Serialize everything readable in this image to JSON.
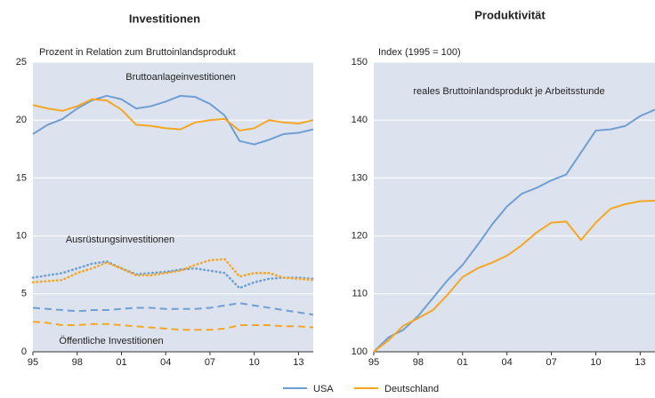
{
  "chart_data": [
    {
      "type": "line",
      "title": "Investitionen",
      "subtitle": "Prozent in Relation zum Bruttoinlandsprodukt",
      "annotations": [
        "Bruttoanlageinvestitionen",
        "Ausrüstungsinvestitionen",
        "Öffentliche Investitionen"
      ],
      "x": [
        1995,
        1996,
        1997,
        1998,
        1999,
        2000,
        2001,
        2002,
        2003,
        2004,
        2005,
        2006,
        2007,
        2008,
        2009,
        2010,
        2011,
        2012,
        2013,
        2014
      ],
      "xlim": [
        1995,
        2014
      ],
      "xticks": [
        {
          "value": 1995,
          "label": "95"
        },
        {
          "value": 1998,
          "label": "98"
        },
        {
          "value": 2001,
          "label": "01"
        },
        {
          "value": 2004,
          "label": "04"
        },
        {
          "value": 2007,
          "label": "07"
        },
        {
          "value": 2010,
          "label": "10"
        },
        {
          "value": 2013,
          "label": "13"
        }
      ],
      "ylim": [
        0,
        25
      ],
      "yticks": [
        0,
        5,
        10,
        15,
        20,
        25
      ],
      "series": [
        {
          "color": "#6f9fd2",
          "style": "solid",
          "values": [
            18.8,
            19.6,
            20.1,
            21.0,
            21.7,
            22.1,
            21.8,
            21.0,
            21.2,
            21.6,
            22.1,
            22.0,
            21.4,
            20.4,
            18.2,
            17.9,
            18.3,
            18.8,
            18.9,
            19.2
          ]
        },
        {
          "color": "#f5a623",
          "style": "solid",
          "values": [
            21.3,
            21.0,
            20.8,
            21.2,
            21.8,
            21.7,
            20.9,
            19.6,
            19.5,
            19.3,
            19.2,
            19.8,
            20.0,
            20.1,
            19.1,
            19.3,
            20.0,
            19.8,
            19.7,
            20.0
          ]
        },
        {
          "color": "#6f9fd2",
          "style": "dotted",
          "values": [
            6.4,
            6.6,
            6.8,
            7.2,
            7.6,
            7.8,
            7.2,
            6.7,
            6.8,
            6.9,
            7.1,
            7.2,
            7.0,
            6.8,
            5.5,
            6.0,
            6.3,
            6.4,
            6.4,
            6.3
          ]
        },
        {
          "color": "#f5a623",
          "style": "dotted",
          "values": [
            6.0,
            6.1,
            6.2,
            6.8,
            7.2,
            7.7,
            7.2,
            6.6,
            6.6,
            6.8,
            7.0,
            7.5,
            7.9,
            8.0,
            6.5,
            6.8,
            6.8,
            6.4,
            6.3,
            6.2
          ]
        },
        {
          "color": "#6f9fd2",
          "style": "dashed",
          "values": [
            3.8,
            3.7,
            3.6,
            3.5,
            3.6,
            3.6,
            3.7,
            3.8,
            3.8,
            3.7,
            3.7,
            3.7,
            3.8,
            4.0,
            4.2,
            4.0,
            3.8,
            3.6,
            3.4,
            3.2
          ]
        },
        {
          "color": "#f5a623",
          "style": "dashed",
          "values": [
            2.6,
            2.5,
            2.3,
            2.3,
            2.4,
            2.4,
            2.3,
            2.2,
            2.1,
            2.0,
            1.9,
            1.9,
            1.9,
            2.0,
            2.3,
            2.3,
            2.3,
            2.2,
            2.2,
            2.1
          ]
        }
      ]
    },
    {
      "type": "line",
      "title": "Produktivität",
      "subtitle": "Index (1995 = 100)",
      "annotations": [
        "reales Bruttoinlandsprodukt je Arbeitsstunde"
      ],
      "x": [
        1995,
        1996,
        1997,
        1998,
        1999,
        2000,
        2001,
        2002,
        2003,
        2004,
        2005,
        2006,
        2007,
        2008,
        2009,
        2010,
        2011,
        2012,
        2013,
        2014
      ],
      "xlim": [
        1995,
        2014
      ],
      "xticks": [
        {
          "value": 1995,
          "label": "95"
        },
        {
          "value": 1998,
          "label": "98"
        },
        {
          "value": 2001,
          "label": "01"
        },
        {
          "value": 2004,
          "label": "04"
        },
        {
          "value": 2007,
          "label": "07"
        },
        {
          "value": 2010,
          "label": "10"
        },
        {
          "value": 2013,
          "label": "13"
        }
      ],
      "ylim": [
        100,
        150
      ],
      "yticks": [
        100,
        110,
        120,
        130,
        140,
        150
      ],
      "series": [
        {
          "name": "USA",
          "color": "#6f9fd2",
          "style": "solid",
          "values": [
            100,
            102.5,
            103.8,
            106.2,
            109.3,
            112.4,
            115.0,
            118.4,
            122.0,
            125.1,
            127.3,
            128.3,
            129.6,
            130.6,
            134.4,
            138.2,
            138.4,
            139.0,
            140.7,
            141.8
          ]
        },
        {
          "name": "Deutschland",
          "color": "#f5a623",
          "style": "solid",
          "values": [
            100,
            102,
            104.5,
            105.8,
            107.2,
            109.9,
            112.9,
            114.4,
            115.4,
            116.6,
            118.4,
            120.6,
            122.3,
            122.5,
            119.3,
            122.3,
            124.7,
            125.5,
            126.0,
            126.1
          ]
        }
      ]
    }
  ]
}
